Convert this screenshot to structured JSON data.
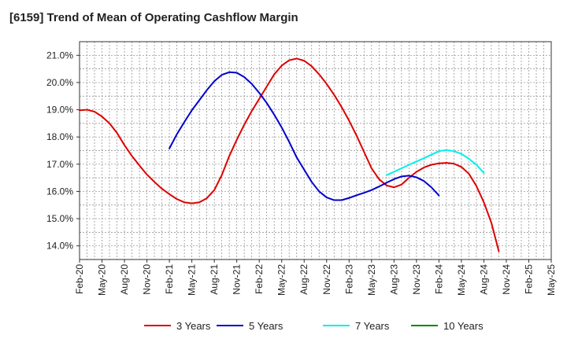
{
  "chart_data": {
    "type": "line",
    "title": "[6159]  Trend of Mean of Operating Cashflow Margin",
    "xlabel": "",
    "ylabel": "",
    "ylim": [
      13.5,
      21.5
    ],
    "yticks": [
      14.0,
      15.0,
      16.0,
      17.0,
      18.0,
      19.0,
      20.0,
      21.0
    ],
    "ytick_labels": [
      "14.0%",
      "15.0%",
      "16.0%",
      "17.0%",
      "18.0%",
      "19.0%",
      "20.0%",
      "21.0%"
    ],
    "x_range": [
      "Feb-20",
      "May-25"
    ],
    "xtick_labels": [
      "Feb-20",
      "May-20",
      "Aug-20",
      "Nov-20",
      "Feb-21",
      "May-21",
      "Aug-21",
      "Nov-21",
      "Feb-22",
      "May-22",
      "Aug-22",
      "Nov-22",
      "Feb-23",
      "May-23",
      "Aug-23",
      "Nov-23",
      "Feb-24",
      "May-24",
      "Aug-24",
      "Nov-24",
      "Feb-25",
      "May-25"
    ],
    "grid": true,
    "legend_position": "bottom",
    "series": [
      {
        "name": "3 Years",
        "color": "#dd0000",
        "start": "Feb-20",
        "values": [
          18.98,
          19.0,
          18.93,
          18.75,
          18.5,
          18.15,
          17.7,
          17.3,
          16.95,
          16.62,
          16.35,
          16.1,
          15.9,
          15.72,
          15.6,
          15.56,
          15.6,
          15.75,
          16.05,
          16.6,
          17.3,
          17.9,
          18.45,
          18.95,
          19.4,
          19.85,
          20.3,
          20.62,
          20.82,
          20.88,
          20.8,
          20.6,
          20.3,
          19.95,
          19.55,
          19.1,
          18.6,
          18.05,
          17.45,
          16.85,
          16.45,
          16.22,
          16.15,
          16.25,
          16.5,
          16.72,
          16.88,
          16.98,
          17.03,
          17.05,
          17.02,
          16.9,
          16.65,
          16.2,
          15.6,
          14.85,
          13.8
        ]
      },
      {
        "name": "5 Years",
        "color": "#0000cc",
        "start": "Feb-21",
        "values": [
          17.58,
          18.1,
          18.55,
          18.98,
          19.35,
          19.72,
          20.05,
          20.28,
          20.38,
          20.36,
          20.2,
          19.95,
          19.62,
          19.25,
          18.82,
          18.35,
          17.82,
          17.25,
          16.8,
          16.35,
          16.0,
          15.78,
          15.68,
          15.68,
          15.76,
          15.86,
          15.95,
          16.05,
          16.18,
          16.32,
          16.45,
          16.55,
          16.58,
          16.52,
          16.38,
          16.15,
          15.85
        ]
      },
      {
        "name": "7 Years",
        "color": "#00eeee",
        "start": "Jul-23",
        "values": [
          16.6,
          16.72,
          16.85,
          16.98,
          17.1,
          17.22,
          17.35,
          17.48,
          17.52,
          17.48,
          17.38,
          17.2,
          16.98,
          16.68
        ]
      },
      {
        "name": "10 Years",
        "color": "#008800",
        "start": "Feb-20",
        "values": []
      }
    ]
  }
}
